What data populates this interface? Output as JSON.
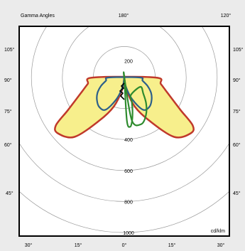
{
  "chart_data": {
    "type": "polar",
    "title": "Gamma Angles",
    "unit_label": "cd/klm",
    "radial_ticks": [
      200,
      400,
      600,
      800,
      1000
    ],
    "radial_tick_labels": [
      "200",
      "400",
      "600",
      "800",
      "1000"
    ],
    "angle_labels": {
      "top": [
        "180°",
        "120°"
      ],
      "left": [
        "105°",
        "90°",
        "75°",
        "60°",
        "45°"
      ],
      "right": [
        "105°",
        "90°",
        "75°",
        "60°",
        "45°"
      ],
      "bottom": [
        "30°",
        "15°",
        "0°",
        "15°",
        "30°"
      ]
    },
    "series": [
      {
        "color": "#c0392b",
        "fill": "#f7ef8c",
        "points": [
          {
            "gamma": 0,
            "value": 0
          },
          {
            "gamma": 10,
            "value": 80
          },
          {
            "gamma": 20,
            "value": 200
          },
          {
            "gamma": 30,
            "value": 320
          },
          {
            "gamma": 40,
            "value": 500
          },
          {
            "gamma": 50,
            "value": 560
          },
          {
            "gamma": 55,
            "value": 540
          },
          {
            "gamma": 60,
            "value": 420
          },
          {
            "gamma": 70,
            "value": 300
          },
          {
            "gamma": 80,
            "value": 240
          },
          {
            "gamma": 90,
            "value": 200
          }
        ]
      },
      {
        "color": "#2c5f8a",
        "fill": "none",
        "points": [
          {
            "gamma": 0,
            "value": 0
          },
          {
            "gamma": 10,
            "value": 60
          },
          {
            "gamma": 20,
            "value": 150
          },
          {
            "gamma": 30,
            "value": 240
          },
          {
            "gamma": 40,
            "value": 250
          },
          {
            "gamma": 50,
            "value": 230
          },
          {
            "gamma": 60,
            "value": 200
          },
          {
            "gamma": 70,
            "value": 160
          },
          {
            "gamma": 80,
            "value": 120
          },
          {
            "gamma": 90,
            "value": 100
          }
        ]
      },
      {
        "color": "#2e8b2e",
        "fill": "none",
        "points": [
          {
            "gamma": 0,
            "value": 0
          },
          {
            "gamma": 10,
            "value": 280
          },
          {
            "gamma": 20,
            "value": 320
          },
          {
            "gamma": 30,
            "value": 280
          },
          {
            "gamma": 40,
            "value": 220
          },
          {
            "gamma": 50,
            "value": 160
          },
          {
            "gamma": 60,
            "value": 120
          }
        ]
      }
    ]
  }
}
